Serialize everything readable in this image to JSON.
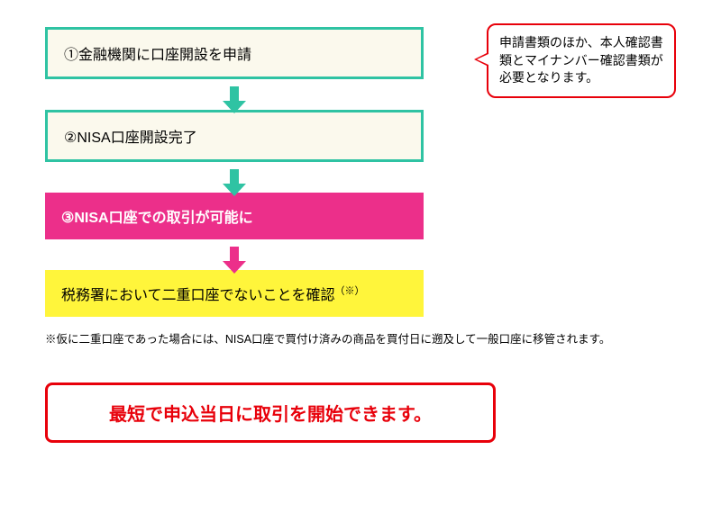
{
  "colors": {
    "teal": "#2fc3a3",
    "cream": "#fbf9ed",
    "pink": "#ec2f8a",
    "yellow": "#fff53b",
    "red": "#e8000a",
    "arrow_teal": "#2fc3a3",
    "arrow_pink": "#ec2f8a"
  },
  "steps": {
    "s1": "①金融機関に口座開設を申請",
    "s2": "②NISA口座開設完了",
    "s3": "③NISA口座での取引が可能に",
    "s4_pre": "税務署において二重口座でないことを確認",
    "s4_sup": "（※）"
  },
  "callout": {
    "text": "申請書類のほか、本人確認書類とマイナンバー確認書類が必要となります。"
  },
  "note": "※仮に二重口座であった場合には、NISA口座で買付け済みの商品を買付日に遡及して一般口座に移管されます。",
  "final": "最短で申込当日に取引を開始できます。"
}
